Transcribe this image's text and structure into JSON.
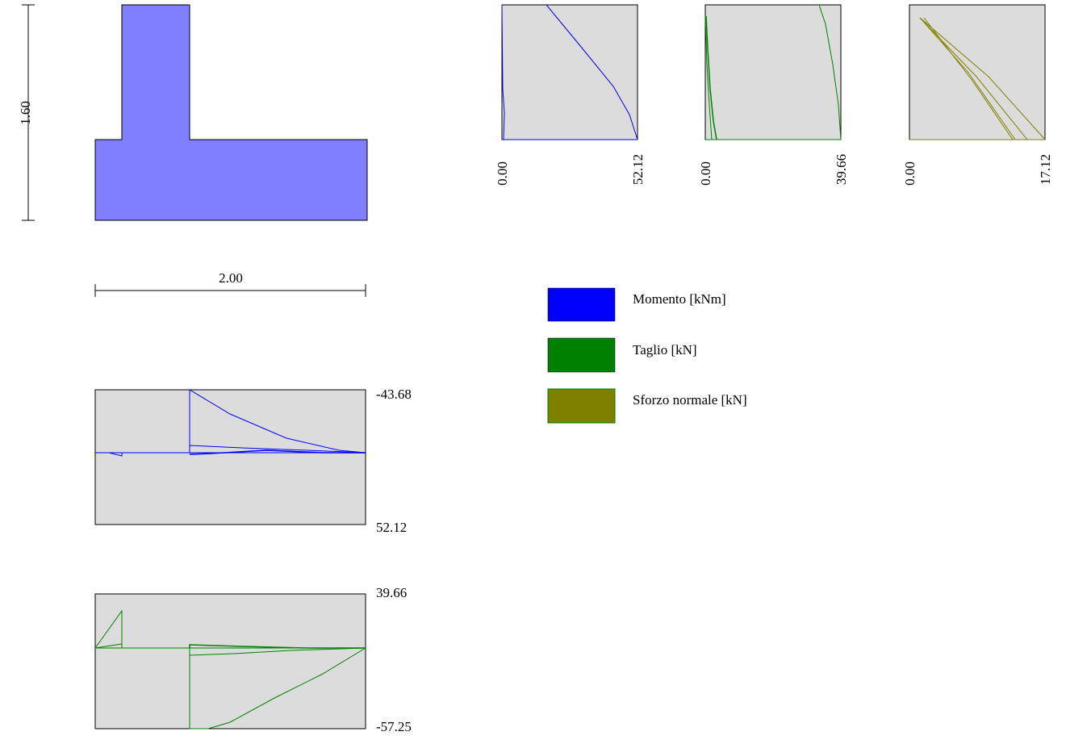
{
  "colors": {
    "section_fill": "#7f7fff",
    "panel_bg": "#dcdcdc",
    "moment": "#0000ff",
    "shear": "#008000",
    "normal": "#808000"
  },
  "section": {
    "height_label": "1.60",
    "width_label": "2.00"
  },
  "top_panels": [
    {
      "min_label": "0.00",
      "max_label": "52.12"
    },
    {
      "min_label": "0.00",
      "max_label": "39.66"
    },
    {
      "min_label": "0.00",
      "max_label": "17.12"
    }
  ],
  "moment_panel": {
    "top_label": "-43.68",
    "bottom_label": "52.12"
  },
  "shear_panel": {
    "top_label": "39.66",
    "bottom_label": "-57.25"
  },
  "legend": [
    {
      "label": "Momento [kNm]",
      "color": "#0000ff"
    },
    {
      "label": "Taglio [kN]",
      "color": "#008000"
    },
    {
      "label": "Sforzo normale [kN]",
      "color": "#808000"
    }
  ]
}
